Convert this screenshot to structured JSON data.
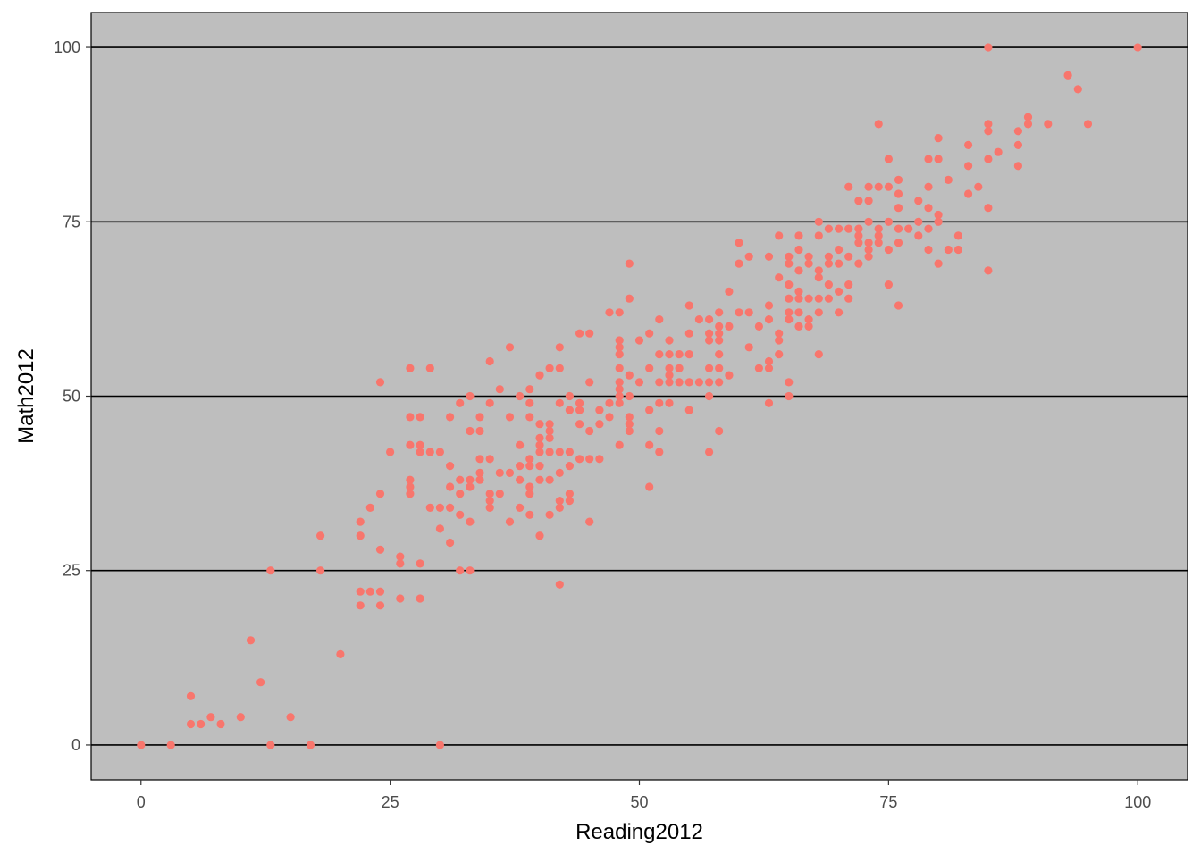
{
  "chart_data": {
    "type": "scatter",
    "title": "",
    "xlabel": "Reading2012",
    "ylabel": "Math2012",
    "xlim": [
      -5,
      105
    ],
    "ylim": [
      -5,
      105
    ],
    "x_ticks": [
      0,
      25,
      50,
      75,
      100
    ],
    "y_ticks": [
      0,
      25,
      50,
      75,
      100
    ],
    "x_tick_labels": [
      "0",
      "25",
      "50",
      "75",
      "100"
    ],
    "y_tick_labels": [
      "0",
      "25",
      "50",
      "75",
      "100"
    ],
    "grid": "horizontal major",
    "legend": "none",
    "colors": {
      "panel_background": "#bebebe",
      "point": "#f8766d",
      "gridline": "#000000",
      "axis_text": "#4d4d4d",
      "axis_title": "#000000"
    },
    "points": [
      [
        0,
        0
      ],
      [
        3,
        0
      ],
      [
        5,
        7
      ],
      [
        5,
        3
      ],
      [
        6,
        3
      ],
      [
        7,
        4
      ],
      [
        8,
        3
      ],
      [
        10,
        4
      ],
      [
        11,
        15
      ],
      [
        12,
        9
      ],
      [
        13,
        0
      ],
      [
        13,
        25
      ],
      [
        15,
        4
      ],
      [
        17,
        0
      ],
      [
        18,
        30
      ],
      [
        18,
        25
      ],
      [
        20,
        13
      ],
      [
        22,
        32
      ],
      [
        22,
        30
      ],
      [
        22,
        22
      ],
      [
        22,
        20
      ],
      [
        23,
        34
      ],
      [
        23,
        22
      ],
      [
        24,
        52
      ],
      [
        24,
        36
      ],
      [
        24,
        28
      ],
      [
        24,
        22
      ],
      [
        24,
        20
      ],
      [
        25,
        42
      ],
      [
        26,
        27
      ],
      [
        26,
        26
      ],
      [
        26,
        21
      ],
      [
        27,
        54
      ],
      [
        27,
        47
      ],
      [
        27,
        43
      ],
      [
        27,
        38
      ],
      [
        27,
        37
      ],
      [
        27,
        36
      ],
      [
        28,
        47
      ],
      [
        28,
        43
      ],
      [
        28,
        42
      ],
      [
        28,
        26
      ],
      [
        28,
        21
      ],
      [
        29,
        54
      ],
      [
        29,
        42
      ],
      [
        29,
        34
      ],
      [
        30,
        42
      ],
      [
        30,
        34
      ],
      [
        30,
        31
      ],
      [
        30,
        0
      ],
      [
        31,
        47
      ],
      [
        31,
        40
      ],
      [
        31,
        37
      ],
      [
        31,
        34
      ],
      [
        31,
        29
      ],
      [
        32,
        49
      ],
      [
        32,
        38
      ],
      [
        32,
        36
      ],
      [
        32,
        33
      ],
      [
        32,
        25
      ],
      [
        33,
        50
      ],
      [
        33,
        45
      ],
      [
        33,
        38
      ],
      [
        33,
        37
      ],
      [
        33,
        32
      ],
      [
        33,
        25
      ],
      [
        34,
        47
      ],
      [
        34,
        45
      ],
      [
        34,
        41
      ],
      [
        34,
        39
      ],
      [
        34,
        38
      ],
      [
        35,
        55
      ],
      [
        35,
        49
      ],
      [
        35,
        41
      ],
      [
        35,
        36
      ],
      [
        35,
        35
      ],
      [
        35,
        34
      ],
      [
        36,
        51
      ],
      [
        36,
        39
      ],
      [
        36,
        36
      ],
      [
        37,
        57
      ],
      [
        37,
        47
      ],
      [
        37,
        39
      ],
      [
        37,
        32
      ],
      [
        38,
        50
      ],
      [
        38,
        43
      ],
      [
        38,
        40
      ],
      [
        38,
        38
      ],
      [
        38,
        34
      ],
      [
        39,
        51
      ],
      [
        39,
        49
      ],
      [
        39,
        47
      ],
      [
        39,
        41
      ],
      [
        39,
        40
      ],
      [
        39,
        37
      ],
      [
        39,
        36
      ],
      [
        39,
        33
      ],
      [
        40,
        53
      ],
      [
        40,
        46
      ],
      [
        40,
        44
      ],
      [
        40,
        43
      ],
      [
        40,
        42
      ],
      [
        40,
        40
      ],
      [
        40,
        38
      ],
      [
        40,
        30
      ],
      [
        41,
        54
      ],
      [
        41,
        46
      ],
      [
        41,
        45
      ],
      [
        41,
        44
      ],
      [
        41,
        42
      ],
      [
        41,
        38
      ],
      [
        41,
        33
      ],
      [
        42,
        57
      ],
      [
        42,
        54
      ],
      [
        42,
        49
      ],
      [
        42,
        42
      ],
      [
        42,
        39
      ],
      [
        42,
        35
      ],
      [
        42,
        34
      ],
      [
        42,
        23
      ],
      [
        43,
        50
      ],
      [
        43,
        48
      ],
      [
        43,
        42
      ],
      [
        43,
        40
      ],
      [
        43,
        36
      ],
      [
        43,
        35
      ],
      [
        44,
        59
      ],
      [
        44,
        49
      ],
      [
        44,
        48
      ],
      [
        44,
        46
      ],
      [
        44,
        41
      ],
      [
        45,
        59
      ],
      [
        45,
        52
      ],
      [
        45,
        45
      ],
      [
        45,
        41
      ],
      [
        45,
        32
      ],
      [
        46,
        48
      ],
      [
        46,
        46
      ],
      [
        46,
        41
      ],
      [
        47,
        62
      ],
      [
        47,
        49
      ],
      [
        47,
        47
      ],
      [
        48,
        62
      ],
      [
        48,
        58
      ],
      [
        48,
        57
      ],
      [
        48,
        56
      ],
      [
        48,
        54
      ],
      [
        48,
        52
      ],
      [
        48,
        51
      ],
      [
        48,
        50
      ],
      [
        48,
        49
      ],
      [
        48,
        43
      ],
      [
        49,
        69
      ],
      [
        49,
        64
      ],
      [
        49,
        53
      ],
      [
        49,
        50
      ],
      [
        49,
        47
      ],
      [
        49,
        46
      ],
      [
        49,
        45
      ],
      [
        50,
        58
      ],
      [
        50,
        52
      ],
      [
        51,
        59
      ],
      [
        51,
        54
      ],
      [
        51,
        48
      ],
      [
        51,
        43
      ],
      [
        51,
        37
      ],
      [
        52,
        61
      ],
      [
        52,
        56
      ],
      [
        52,
        52
      ],
      [
        52,
        49
      ],
      [
        52,
        45
      ],
      [
        52,
        42
      ],
      [
        53,
        58
      ],
      [
        53,
        56
      ],
      [
        53,
        54
      ],
      [
        53,
        53
      ],
      [
        53,
        52
      ],
      [
        53,
        49
      ],
      [
        54,
        56
      ],
      [
        54,
        54
      ],
      [
        54,
        52
      ],
      [
        55,
        63
      ],
      [
        55,
        59
      ],
      [
        55,
        56
      ],
      [
        55,
        52
      ],
      [
        55,
        48
      ],
      [
        56,
        61
      ],
      [
        56,
        52
      ],
      [
        57,
        61
      ],
      [
        57,
        59
      ],
      [
        57,
        58
      ],
      [
        57,
        54
      ],
      [
        57,
        52
      ],
      [
        57,
        50
      ],
      [
        57,
        42
      ],
      [
        58,
        62
      ],
      [
        58,
        60
      ],
      [
        58,
        59
      ],
      [
        58,
        58
      ],
      [
        58,
        56
      ],
      [
        58,
        54
      ],
      [
        58,
        52
      ],
      [
        58,
        45
      ],
      [
        59,
        65
      ],
      [
        59,
        60
      ],
      [
        59,
        53
      ],
      [
        60,
        72
      ],
      [
        60,
        69
      ],
      [
        60,
        62
      ],
      [
        61,
        70
      ],
      [
        61,
        62
      ],
      [
        61,
        57
      ],
      [
        62,
        60
      ],
      [
        62,
        54
      ],
      [
        63,
        70
      ],
      [
        63,
        63
      ],
      [
        63,
        61
      ],
      [
        63,
        55
      ],
      [
        63,
        54
      ],
      [
        63,
        49
      ],
      [
        64,
        73
      ],
      [
        64,
        67
      ],
      [
        64,
        59
      ],
      [
        64,
        58
      ],
      [
        64,
        56
      ],
      [
        65,
        70
      ],
      [
        65,
        69
      ],
      [
        65,
        66
      ],
      [
        65,
        64
      ],
      [
        65,
        62
      ],
      [
        65,
        61
      ],
      [
        65,
        52
      ],
      [
        65,
        50
      ],
      [
        66,
        73
      ],
      [
        66,
        71
      ],
      [
        66,
        68
      ],
      [
        66,
        65
      ],
      [
        66,
        64
      ],
      [
        66,
        62
      ],
      [
        66,
        60
      ],
      [
        67,
        70
      ],
      [
        67,
        69
      ],
      [
        67,
        64
      ],
      [
        67,
        61
      ],
      [
        67,
        60
      ],
      [
        68,
        75
      ],
      [
        68,
        73
      ],
      [
        68,
        68
      ],
      [
        68,
        67
      ],
      [
        68,
        64
      ],
      [
        68,
        62
      ],
      [
        68,
        56
      ],
      [
        69,
        74
      ],
      [
        69,
        70
      ],
      [
        69,
        69
      ],
      [
        69,
        66
      ],
      [
        69,
        64
      ],
      [
        70,
        74
      ],
      [
        70,
        71
      ],
      [
        70,
        69
      ],
      [
        70,
        65
      ],
      [
        70,
        62
      ],
      [
        71,
        80
      ],
      [
        71,
        74
      ],
      [
        71,
        70
      ],
      [
        71,
        66
      ],
      [
        71,
        64
      ],
      [
        72,
        78
      ],
      [
        72,
        74
      ],
      [
        72,
        73
      ],
      [
        72,
        72
      ],
      [
        72,
        69
      ],
      [
        73,
        80
      ],
      [
        73,
        78
      ],
      [
        73,
        75
      ],
      [
        73,
        72
      ],
      [
        73,
        71
      ],
      [
        73,
        70
      ],
      [
        74,
        89
      ],
      [
        74,
        80
      ],
      [
        74,
        74
      ],
      [
        74,
        73
      ],
      [
        74,
        72
      ],
      [
        75,
        84
      ],
      [
        75,
        80
      ],
      [
        75,
        75
      ],
      [
        75,
        71
      ],
      [
        75,
        66
      ],
      [
        76,
        81
      ],
      [
        76,
        79
      ],
      [
        76,
        77
      ],
      [
        76,
        74
      ],
      [
        76,
        72
      ],
      [
        76,
        63
      ],
      [
        77,
        74
      ],
      [
        78,
        78
      ],
      [
        78,
        75
      ],
      [
        78,
        73
      ],
      [
        79,
        84
      ],
      [
        79,
        80
      ],
      [
        79,
        77
      ],
      [
        79,
        74
      ],
      [
        79,
        71
      ],
      [
        80,
        87
      ],
      [
        80,
        84
      ],
      [
        80,
        76
      ],
      [
        80,
        75
      ],
      [
        80,
        69
      ],
      [
        81,
        81
      ],
      [
        81,
        71
      ],
      [
        82,
        73
      ],
      [
        82,
        71
      ],
      [
        83,
        86
      ],
      [
        83,
        83
      ],
      [
        83,
        79
      ],
      [
        84,
        80
      ],
      [
        85,
        100
      ],
      [
        85,
        89
      ],
      [
        85,
        88
      ],
      [
        85,
        84
      ],
      [
        85,
        77
      ],
      [
        85,
        68
      ],
      [
        86,
        85
      ],
      [
        88,
        88
      ],
      [
        88,
        86
      ],
      [
        88,
        83
      ],
      [
        89,
        90
      ],
      [
        89,
        89
      ],
      [
        91,
        89
      ],
      [
        93,
        96
      ],
      [
        94,
        94
      ],
      [
        95,
        89
      ],
      [
        100,
        100
      ]
    ]
  }
}
